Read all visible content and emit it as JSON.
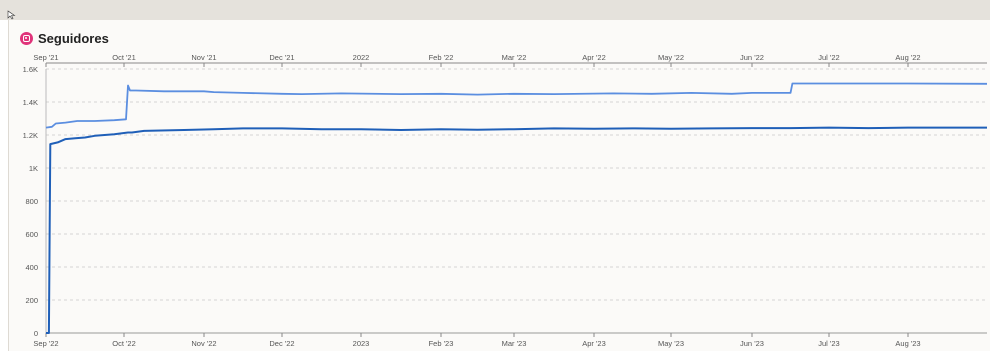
{
  "header": {
    "title": "Seguidores",
    "icon": "instagram-icon"
  },
  "chart_data": {
    "type": "line",
    "title": "Seguidores",
    "x_top_ticks": [
      "Sep '21",
      "Oct '21",
      "Nov '21",
      "Dec '21",
      "2022",
      "Feb '22",
      "Mar '22",
      "Apr '22",
      "May '22",
      "Jun '22",
      "Jul '22",
      "Aug '22"
    ],
    "x_bottom_ticks": [
      "Sep '22",
      "Oct '22",
      "Nov '22",
      "Dec '22",
      "2023",
      "Feb '23",
      "Mar '23",
      "Apr '23",
      "May '23",
      "Jun '23",
      "Jul '23",
      "Aug '23"
    ],
    "y_ticks": [
      "0",
      "200",
      "400",
      "600",
      "800",
      "1K",
      "1.2K",
      "1.4K",
      "1.6K"
    ],
    "ylim": [
      0,
      1600
    ],
    "y_tick_values": [
      0,
      200,
      400,
      600,
      800,
      1000,
      1200,
      1400,
      1600
    ],
    "grid": true,
    "colors": {
      "current": "#1f5fb8",
      "previous": "#5b8ee0"
    },
    "series": [
      {
        "key": "previous",
        "color": "#5b8ee0",
        "points": [
          [
            0,
            1245
          ],
          [
            0.3,
            1250
          ],
          [
            0.5,
            1270
          ],
          [
            1,
            1275
          ],
          [
            1.6,
            1285
          ],
          [
            2.5,
            1285
          ],
          [
            3.5,
            1290
          ],
          [
            4.1,
            1295
          ],
          [
            4.2,
            1500
          ],
          [
            4.3,
            1470
          ],
          [
            4.6,
            1470
          ],
          [
            6,
            1465
          ],
          [
            8,
            1465
          ],
          [
            8.5,
            1460
          ],
          [
            10,
            1455
          ],
          [
            12,
            1450
          ],
          [
            13,
            1448
          ],
          [
            15,
            1452
          ],
          [
            18,
            1448
          ],
          [
            20,
            1450
          ],
          [
            22,
            1445
          ],
          [
            24,
            1450
          ],
          [
            26,
            1448
          ],
          [
            29,
            1452
          ],
          [
            31,
            1450
          ],
          [
            33,
            1455
          ],
          [
            35,
            1450
          ],
          [
            36,
            1455
          ],
          [
            38,
            1455
          ],
          [
            38.1,
            1512
          ],
          [
            40,
            1512
          ],
          [
            44,
            1512
          ],
          [
            48,
            1510
          ]
        ]
      },
      {
        "key": "current",
        "color": "#1f5fb8",
        "points": [
          [
            0,
            0
          ],
          [
            0.15,
            0
          ],
          [
            0.22,
            1145
          ],
          [
            0.6,
            1155
          ],
          [
            1,
            1175
          ],
          [
            1.5,
            1180
          ],
          [
            2,
            1185
          ],
          [
            2.5,
            1195
          ],
          [
            3.5,
            1205
          ],
          [
            4.2,
            1215
          ],
          [
            4.4,
            1215
          ],
          [
            5,
            1225
          ],
          [
            7,
            1230
          ],
          [
            8.5,
            1235
          ],
          [
            10,
            1240
          ],
          [
            12,
            1240
          ],
          [
            14,
            1235
          ],
          [
            16,
            1235
          ],
          [
            18,
            1230
          ],
          [
            20,
            1235
          ],
          [
            22,
            1232
          ],
          [
            24,
            1235
          ],
          [
            26,
            1240
          ],
          [
            28,
            1238
          ],
          [
            30,
            1240
          ],
          [
            32,
            1238
          ],
          [
            34,
            1240
          ],
          [
            36,
            1242
          ],
          [
            38,
            1242
          ],
          [
            40,
            1245
          ],
          [
            42,
            1242
          ],
          [
            44,
            1245
          ],
          [
            46,
            1245
          ],
          [
            48,
            1245
          ]
        ]
      }
    ]
  }
}
